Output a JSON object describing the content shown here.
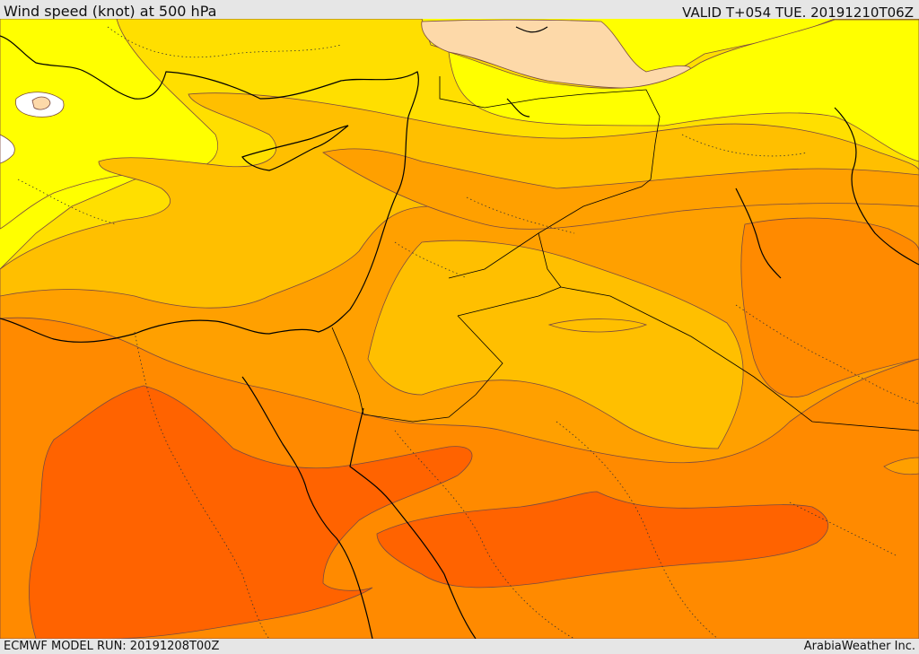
{
  "header": {
    "title": "Wind speed (knot) at 500 hPa",
    "valid": "VALID T+054 TUE. 20191210T06Z"
  },
  "footer": {
    "model_run": "ECMWF MODEL RUN: 20191208T00Z",
    "credit": "ArabiaWeather Inc."
  },
  "colors": {
    "band_0": "#ffffff",
    "band_1": "#fdd9a9",
    "band_2": "#ffff00",
    "band_3": "#ffdf00",
    "band_4": "#ffbf00",
    "band_5": "#ffa000",
    "band_6": "#ff8a00",
    "band_7": "#ff6300",
    "coastline": "#000000",
    "contour": "#7a4a40"
  }
}
